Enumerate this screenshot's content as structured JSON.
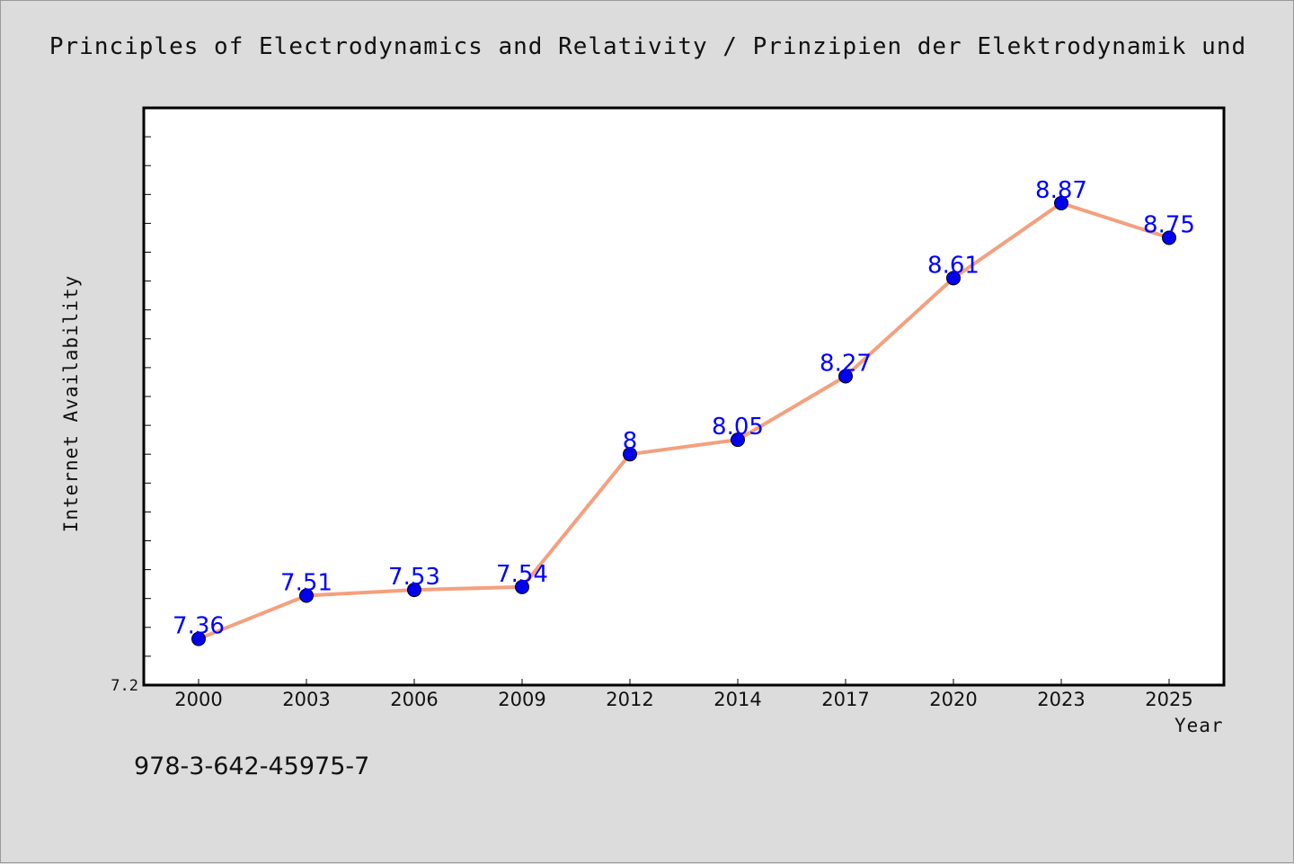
{
  "chart_data": {
    "type": "line",
    "title": "Principles of Electrodynamics and Relativity / Prinzipien der Elektrodynamik und",
    "xlabel": "Year",
    "ylabel": "Internet Availability",
    "categories": [
      "2000",
      "2003",
      "2006",
      "2009",
      "2012",
      "2014",
      "2017",
      "2020",
      "2023",
      "2025"
    ],
    "series": [
      {
        "values": [
          7.36,
          7.51,
          7.53,
          7.54,
          8.0,
          8.05,
          8.27,
          8.61,
          8.87,
          8.75
        ],
        "data_labels": [
          "7.36",
          "7.51",
          "7.53",
          "7.54",
          "8",
          "8.05",
          "8.27",
          "8.61",
          "8.87",
          "8.75"
        ],
        "line_color": "#f4a07e",
        "marker_color": "#0000ee",
        "label_color": "#0000ff"
      }
    ],
    "ylim": [
      7.2,
      9.2
    ],
    "y_tick_labels": [
      "7.2"
    ],
    "y_minor_step": 0.1,
    "grid": false,
    "legend": "none"
  },
  "footnote": "978-3-642-45975-7",
  "colors": {
    "background": "#dcdcdc",
    "plot_background": "#ffffff",
    "axis": "#000000"
  }
}
